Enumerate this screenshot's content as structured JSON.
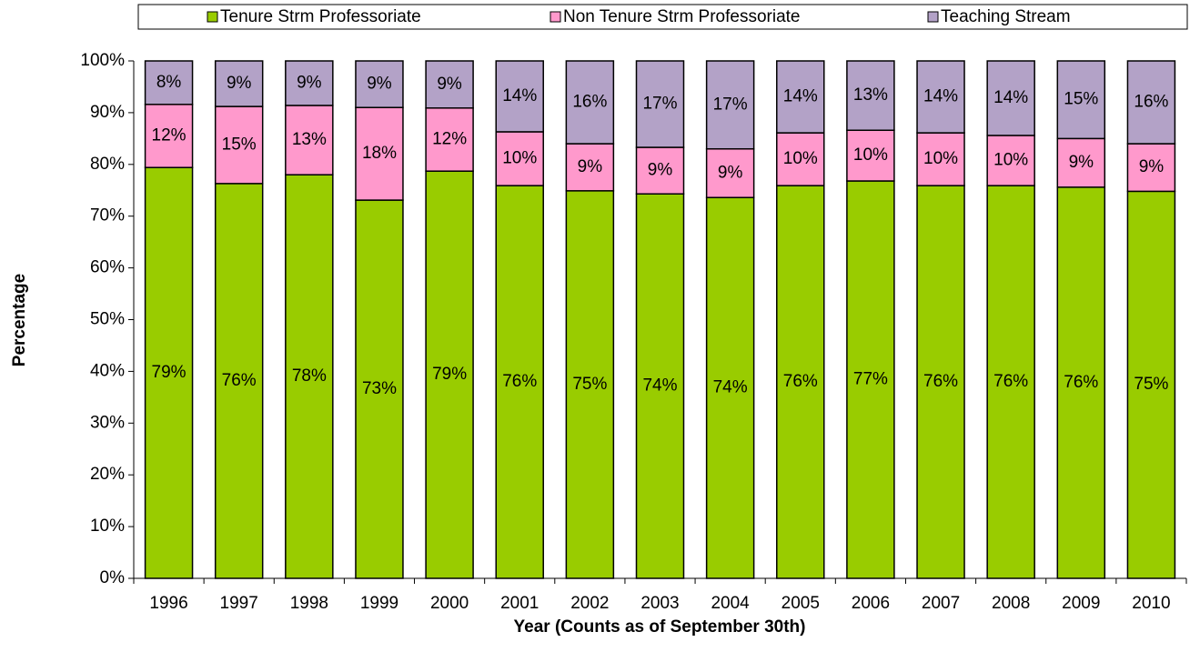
{
  "chart_data": {
    "type": "stacked_bar",
    "x_label": "Year (Counts as of September 30th)",
    "y_label": "Percentage",
    "categories": [
      "1996",
      "1997",
      "1998",
      "1999",
      "2000",
      "2001",
      "2002",
      "2003",
      "2004",
      "2005",
      "2006",
      "2007",
      "2008",
      "2009",
      "2010"
    ],
    "series": [
      {
        "name": "Tenure Strm Professoriate",
        "color": "#99cc00",
        "values": [
          79.4,
          76.3,
          78.0,
          73.1,
          78.7,
          75.9,
          74.9,
          74.3,
          73.6,
          75.9,
          76.8,
          75.9,
          75.9,
          75.6,
          74.8
        ],
        "value_labels": [
          "79%",
          "76%",
          "78%",
          "73%",
          "79%",
          "76%",
          "75%",
          "74%",
          "74%",
          "76%",
          "77%",
          "76%",
          "76%",
          "76%",
          "75%"
        ]
      },
      {
        "name": "Non Tenure Strm Professoriate",
        "color": "#ff99cc",
        "values": [
          12.2,
          14.9,
          13.4,
          17.9,
          12.2,
          10.4,
          9.1,
          9.0,
          9.4,
          10.2,
          9.8,
          10.2,
          9.7,
          9.4,
          9.2
        ],
        "value_labels": [
          "12%",
          "15%",
          "13%",
          "18%",
          "12%",
          "10%",
          "9%",
          "9%",
          "9%",
          "10%",
          "10%",
          "10%",
          "10%",
          "9%",
          "9%"
        ]
      },
      {
        "name": "Teaching Stream",
        "color": "#b3a2c7",
        "values": [
          8.4,
          8.8,
          8.6,
          9.0,
          9.1,
          13.7,
          16.0,
          16.7,
          17.0,
          13.9,
          13.4,
          13.9,
          14.4,
          15.0,
          16.0
        ],
        "value_labels": [
          "8%",
          "9%",
          "9%",
          "9%",
          "9%",
          "14%",
          "16%",
          "17%",
          "17%",
          "14%",
          "13%",
          "14%",
          "14%",
          "15%",
          "16%"
        ]
      }
    ],
    "ylim": [
      0,
      100
    ],
    "yticks": [
      {
        "value": 0,
        "label": "0%"
      },
      {
        "value": 10,
        "label": "10%"
      },
      {
        "value": 20,
        "label": "20%"
      },
      {
        "value": 30,
        "label": "30%"
      },
      {
        "value": 40,
        "label": "40%"
      },
      {
        "value": 50,
        "label": "50%"
      },
      {
        "value": 60,
        "label": "60%"
      },
      {
        "value": 70,
        "label": "70%"
      },
      {
        "value": 80,
        "label": "80%"
      },
      {
        "value": 90,
        "label": "90%"
      },
      {
        "value": 100,
        "label": "100%"
      }
    ],
    "legend": "top"
  }
}
